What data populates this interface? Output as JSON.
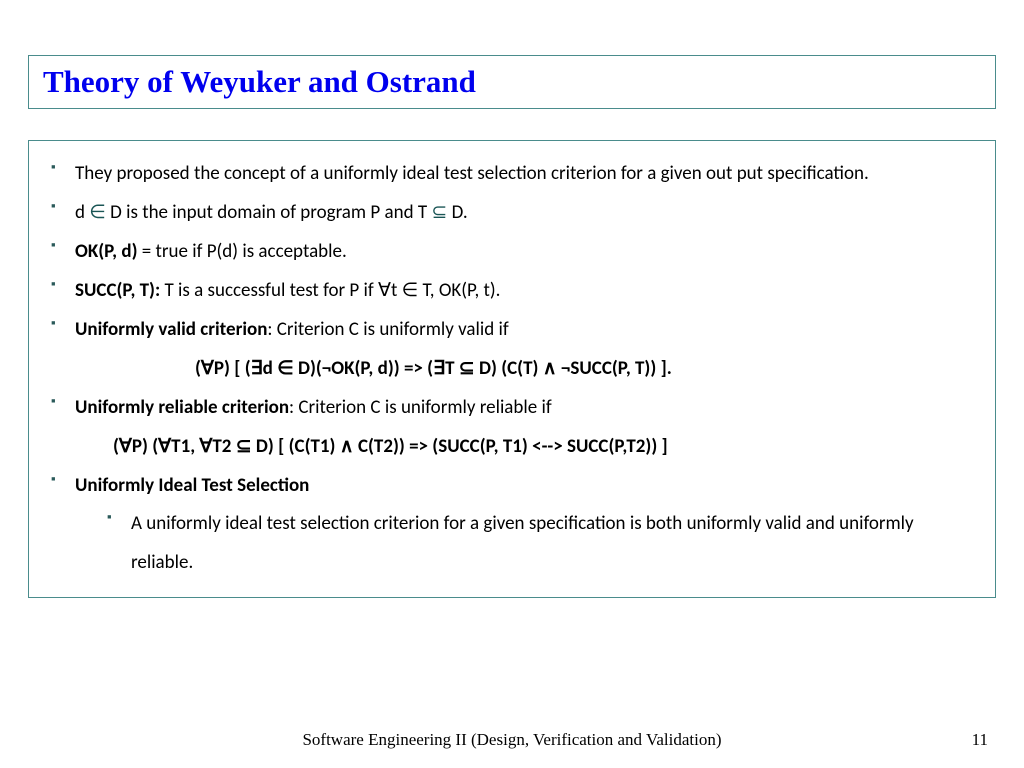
{
  "title": "Theory of Weyuker and Ostrand",
  "bullets": {
    "b1": "They proposed the concept of a uniformly ideal test selection criterion for a given out put specification.",
    "b2_pre": "d ",
    "b2_sym1": "∈",
    "b2_mid": " D is the input domain of program P and T ",
    "b2_sym2": "⊆",
    "b2_post": " D.",
    "b3_bold": "OK(P, d)",
    "b3_rest": " = true if P(d) is acceptable.",
    "b4_bold": "SUCC(P, T):",
    "b4_rest": " T is a successful test for P if ∀t ∈ T, OK(P, t).",
    "b5_bold": "Uniformly valid criterion",
    "b5_rest": ": Criterion C is uniformly valid if",
    "formula1": "(∀P) [ (∃d ∈ D)(¬OK(P, d)) => (∃T ⊆ D) (C(T) ∧  ¬SUCC(P, T)) ].",
    "b6_bold": "Uniformly reliable criterion",
    "b6_rest": ": Criterion C is uniformly reliable if",
    "formula2": "(∀P) (∀T1, ∀T2 ⊆ D) [ (C(T1) ∧ C(T2)) =>  (SUCC(P, T1)  <--> SUCC(P,T2)) ]",
    "b7_bold": "Uniformly Ideal Test Selection",
    "sub1": "A uniformly ideal test selection criterion for a given specification is both uniformly valid and uniformly reliable."
  },
  "footer": "Software Engineering II (Design, Verification and Validation)",
  "page": "11"
}
